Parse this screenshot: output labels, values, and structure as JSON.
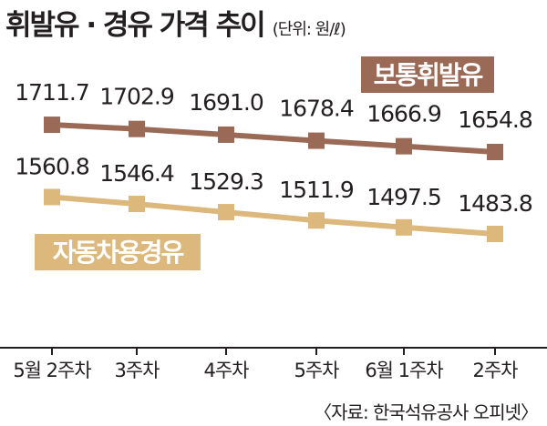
{
  "title": "휘발유 · 경유 가격 추이",
  "unit": "(단위: 원/ℓ)",
  "source": "〈자료: 한국석유공사 오피넷〉",
  "colors": {
    "gasoline": "#9b6a57",
    "diesel": "#dcb87c",
    "axis": "#231f20",
    "label_text": "#ffffff"
  },
  "chart_data": {
    "type": "line",
    "categories": [
      "5월 2주차",
      "3주차",
      "4주차",
      "5주차",
      "6월 1주차",
      "2주차"
    ],
    "series": [
      {
        "name": "보통휘발유",
        "values": [
          1711.7,
          1702.9,
          1691.0,
          1678.4,
          1666.9,
          1654.8
        ],
        "value_labels": [
          "1711.7",
          "1702.9",
          "1691.0",
          "1678.4",
          "1666.9",
          "1654.8"
        ]
      },
      {
        "name": "자동차용경유",
        "values": [
          1560.8,
          1546.4,
          1529.3,
          1511.9,
          1497.5,
          1483.8
        ],
        "value_labels": [
          "1560.8",
          "1546.4",
          "1529.3",
          "1511.9",
          "1497.5",
          "1483.8"
        ]
      }
    ],
    "xlabel": "",
    "ylabel": "",
    "grid": false,
    "legend": "inline labels near each line"
  }
}
